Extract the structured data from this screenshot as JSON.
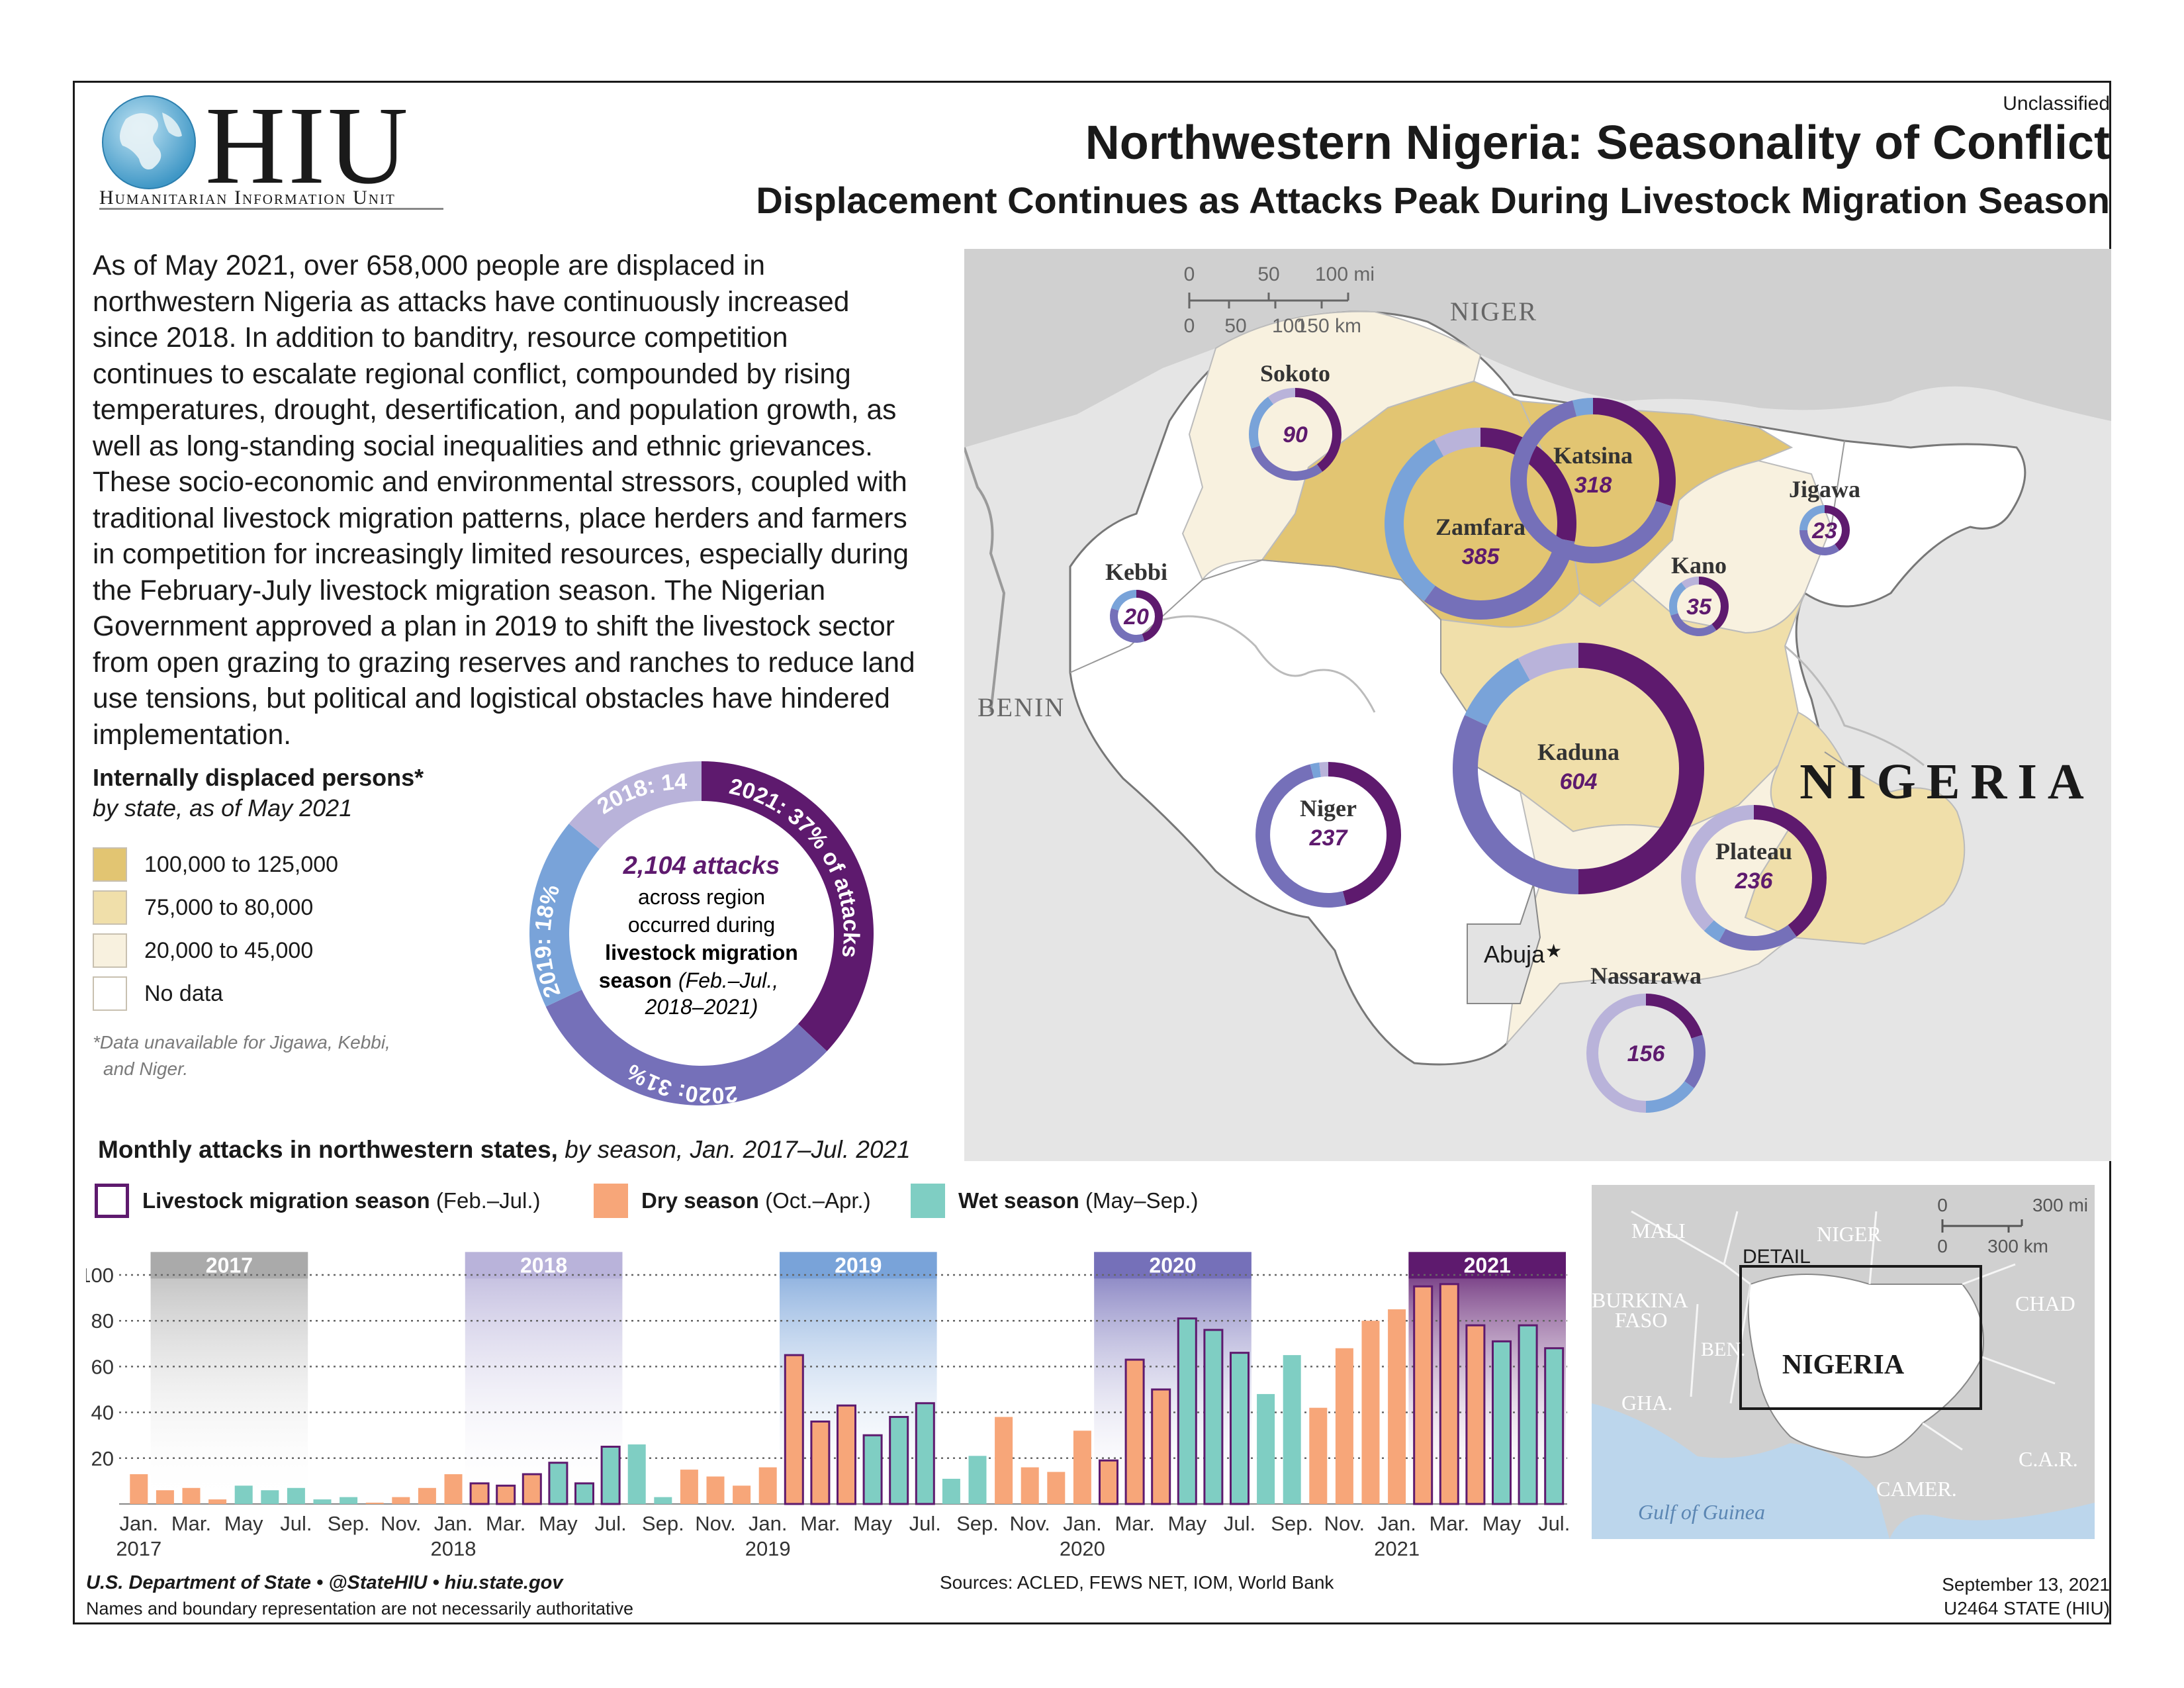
{
  "header": {
    "logo_text": "HIU",
    "logo_subtext": "Humanitarian Information Unit",
    "classification": "Unclassified",
    "title": "Northwestern Nigeria: Seasonality of Conflict",
    "subtitle": "Displacement Continues as Attacks Peak During Livestock Migration Season"
  },
  "intro_lines": [
    "As of May 2021, over 658,000 people are displaced in",
    "northwestern Nigeria as attacks have continuously increased",
    "since 2018. In addition to banditry, resource competition",
    "continues to escalate regional conflict, compounded by rising",
    "temperatures, drought, desertification, and population growth, as",
    "well as long-standing social inequalities and ethnic grievances.",
    "These socio-economic and environmental stressors, coupled with",
    "traditional livestock migration patterns, place herders and farmers",
    "in competition for increasingly limited resources, especially during",
    "the February-July livestock migration season. The Nigerian",
    "Government approved a plan in 2019 to shift the livestock sector",
    "from open grazing to grazing reserves and ranches to reduce land",
    "use tensions, but political and logistical obstacles have hindered",
    "implementation."
  ],
  "legend": {
    "title": "Internally displaced persons*",
    "subtitle": "by state, as of May 2021",
    "items": [
      {
        "label": "100,000 to 125,000",
        "color": "#e2c572"
      },
      {
        "label": "75,000 to 80,000",
        "color": "#f0dfaa"
      },
      {
        "label": "20,000 to 45,000",
        "color": "#f8f1df"
      },
      {
        "label": "No data",
        "color": "#ffffff"
      }
    ],
    "note_line1": "*Data unavailable for Jigawa, Kebbi,",
    "note_line2": "and Niger."
  },
  "donut": {
    "center_bold": "2,104 attacks",
    "center_line1": "across region",
    "center_line2": "occurred during",
    "center_bold2": "livestock migration",
    "center_line3": "season",
    "center_italic": "(Feb.–Jul.,",
    "center_italic2": "2018–2021)",
    "segments": [
      {
        "label": "2021: 37% of attacks",
        "year": "2021",
        "pct": 37,
        "color": "#5e1a6e"
      },
      {
        "label": "2020: 31%",
        "year": "2020",
        "pct": 31,
        "color": "#7570b9"
      },
      {
        "label": "2019: 18%",
        "year": "2019",
        "pct": 18,
        "color": "#79a3d9"
      },
      {
        "label": "2018: 14%",
        "year": "2018",
        "pct": 14,
        "color": "#b9b3da"
      }
    ]
  },
  "map": {
    "country_labels": {
      "niger": "NIGER",
      "benin": "BENIN",
      "nigeria": "NIGERIA"
    },
    "capital_label": "Abuja",
    "scale": {
      "mi_labels": [
        "0",
        "50",
        "100 mi"
      ],
      "km_labels": [
        "0",
        "50",
        "100",
        "150 km"
      ]
    },
    "states": [
      {
        "name": "Sokoto",
        "attacks": "90",
        "shares": [
          0.4,
          0.3,
          0.2,
          0.1
        ]
      },
      {
        "name": "Zamfara",
        "attacks": "385",
        "shares": [
          0.28,
          0.32,
          0.32,
          0.08
        ]
      },
      {
        "name": "Katsina",
        "attacks": "318",
        "shares": [
          0.3,
          0.66,
          0.04,
          0.0
        ]
      },
      {
        "name": "Jigawa",
        "attacks": "23",
        "shares": [
          0.4,
          0.35,
          0.25,
          0.0
        ]
      },
      {
        "name": "Kebbi",
        "attacks": "20",
        "shares": [
          0.45,
          0.35,
          0.2,
          0.0
        ]
      },
      {
        "name": "Kano",
        "attacks": "35",
        "shares": [
          0.4,
          0.3,
          0.2,
          0.1
        ]
      },
      {
        "name": "Kaduna",
        "attacks": "604",
        "shares": [
          0.5,
          0.32,
          0.1,
          0.08
        ]
      },
      {
        "name": "Niger",
        "attacks": "237",
        "shares": [
          0.46,
          0.5,
          0.02,
          0.02
        ]
      },
      {
        "name": "Plateau",
        "attacks": "236",
        "shares": [
          0.4,
          0.18,
          0.04,
          0.38
        ]
      },
      {
        "name": "Nassarawa",
        "attacks": "156",
        "shares": [
          0.2,
          0.15,
          0.15,
          0.5
        ]
      }
    ]
  },
  "inset": {
    "detail_label": "DETAIL",
    "labels": [
      "MALI",
      "NIGER",
      "CHAD",
      "BURKINA",
      "FASO",
      "BEN.",
      "GHA.",
      "C.A.R.",
      "CAMER.",
      "Gulf of Guinea"
    ],
    "nigeria_label": "NIGERIA",
    "scale": {
      "mi_labels": [
        "0",
        "300 mi"
      ],
      "km_labels": [
        "0",
        "300 km"
      ]
    }
  },
  "chart_title_bold": "Monthly attacks in northwestern states,",
  "chart_title_italic": "by season, Jan. 2017–Jul. 2021",
  "chart_legend": {
    "livestock_bold": "Livestock migration season",
    "livestock_rest": "(Feb.–Jul.)",
    "dry_bold": "Dry season",
    "dry_rest": "(Oct.–Apr.)",
    "wet_bold": "Wet season",
    "wet_rest": "(May–Sep.)"
  },
  "colors": {
    "dry": "#f7a679",
    "wet": "#7fcec3",
    "livestock_outline": "#5e1a6e",
    "purple_text": "#5e1a6e"
  },
  "chart_data": {
    "type": "bar",
    "title": "Monthly attacks in northwestern states, by season, Jan. 2017–Jul. 2021",
    "ylim": [
      0,
      110
    ],
    "yticks": [
      20,
      40,
      60,
      80,
      100
    ],
    "grid": true,
    "x_tick_labels": [
      "Jan.",
      "Mar.",
      "May",
      "Jul.",
      "Sep.",
      "Nov.",
      "Jan.",
      "Mar.",
      "May",
      "Jul.",
      "Sep.",
      "Nov.",
      "Jan.",
      "Mar.",
      "May",
      "Jul.",
      "Sep.",
      "Nov.",
      "Jan.",
      "Mar.",
      "May",
      "Jul.",
      "Sep.",
      "Nov.",
      "Jan.",
      "Mar.",
      "May",
      "Jul."
    ],
    "year_labels": [
      "2017",
      "2018",
      "2019",
      "2020",
      "2021"
    ],
    "migration_season_labels": [
      "2017",
      "2018",
      "2019",
      "2020",
      "2021"
    ],
    "categories": [
      "Jan 2017",
      "Feb 2017",
      "Mar 2017",
      "Apr 2017",
      "May 2017",
      "Jun 2017",
      "Jul 2017",
      "Aug 2017",
      "Sep 2017",
      "Oct 2017",
      "Nov 2017",
      "Dec 2017",
      "Jan 2018",
      "Feb 2018",
      "Mar 2018",
      "Apr 2018",
      "May 2018",
      "Jun 2018",
      "Jul 2018",
      "Aug 2018",
      "Sep 2018",
      "Oct 2018",
      "Nov 2018",
      "Dec 2018",
      "Jan 2019",
      "Feb 2019",
      "Mar 2019",
      "Apr 2019",
      "May 2019",
      "Jun 2019",
      "Jul 2019",
      "Aug 2019",
      "Sep 2019",
      "Oct 2019",
      "Nov 2019",
      "Dec 2019",
      "Jan 2020",
      "Feb 2020",
      "Mar 2020",
      "Apr 2020",
      "May 2020",
      "Jun 2020",
      "Jul 2020",
      "Aug 2020",
      "Sep 2020",
      "Oct 2020",
      "Nov 2020",
      "Dec 2020",
      "Jan 2021",
      "Feb 2021",
      "Mar 2021",
      "Apr 2021",
      "May 2021",
      "Jun 2021",
      "Jul 2021"
    ],
    "values": [
      13,
      6,
      7,
      2,
      8,
      6,
      7,
      2,
      3,
      0,
      3,
      7,
      13,
      9,
      8,
      13,
      18,
      9,
      25,
      26,
      3,
      15,
      12,
      8,
      16,
      65,
      36,
      43,
      30,
      38,
      44,
      11,
      21,
      38,
      16,
      14,
      32,
      19,
      63,
      50,
      81,
      76,
      66,
      48,
      65,
      42,
      68,
      80,
      85,
      95,
      96,
      78,
      71,
      78,
      68
    ],
    "season": [
      "dry",
      "dry",
      "dry",
      "dry",
      "wet",
      "wet",
      "wet",
      "wet",
      "wet",
      "dry",
      "dry",
      "dry",
      "dry",
      "dry",
      "dry",
      "dry",
      "wet",
      "wet",
      "wet",
      "wet",
      "wet",
      "dry",
      "dry",
      "dry",
      "dry",
      "dry",
      "dry",
      "dry",
      "wet",
      "wet",
      "wet",
      "wet",
      "wet",
      "dry",
      "dry",
      "dry",
      "dry",
      "dry",
      "dry",
      "dry",
      "wet",
      "wet",
      "wet",
      "wet",
      "wet",
      "dry",
      "dry",
      "dry",
      "dry",
      "dry",
      "dry",
      "dry",
      "wet",
      "wet",
      "wet"
    ]
  },
  "footer": {
    "agency": "U.S. Department of State • @StateHIU • hiu.state.gov",
    "disclaimer": "Names and boundary representation are not necessarily authoritative",
    "sources": "Sources: ACLED, FEWS NET, IOM, World Bank",
    "date": "September 13, 2021",
    "product_id": "U2464 STATE (HIU)"
  }
}
